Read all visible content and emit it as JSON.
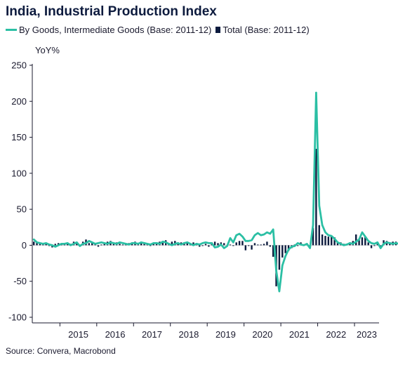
{
  "title": "India, Industrial Production Index",
  "legend": {
    "series1": "By Goods, Intermediate Goods (Base: 2011-12)",
    "series2": "Total (Base: 2011-12)"
  },
  "source": "Source: Convera, Macrobond",
  "colors": {
    "line": "#2bbfa4",
    "bar": "#0d1b3e",
    "axis": "#1a1a2e"
  },
  "chart_data": {
    "type": "bar+line",
    "ylabel": "YoY%",
    "ylim": [
      -100,
      250
    ],
    "yticks": [
      -100,
      -50,
      0,
      50,
      100,
      150,
      200,
      250
    ],
    "xlim": [
      "2014-04",
      "2023-08"
    ],
    "xticks": [
      "2015",
      "2016",
      "2017",
      "2018",
      "2019",
      "2020",
      "2021",
      "2022",
      "2023"
    ],
    "grid": false,
    "legend_position": "top-left",
    "series": [
      {
        "name": "By Goods, Intermediate Goods (Base: 2011-12)",
        "type": "line",
        "start": "2014-04",
        "frequency": "monthly",
        "values": [
          8,
          4,
          3,
          2,
          3,
          1,
          0,
          -2,
          0,
          2,
          2,
          3,
          0,
          2,
          4,
          -1,
          2,
          3,
          6,
          4,
          2,
          3,
          4,
          3,
          2,
          4,
          3,
          2,
          4,
          3,
          2,
          1,
          3,
          3,
          2,
          4,
          3,
          2,
          1,
          3,
          3,
          2,
          5,
          4,
          2,
          0,
          2,
          3,
          1,
          3,
          4,
          2,
          0,
          2,
          1,
          3,
          4,
          3,
          3,
          -3,
          -2,
          1,
          -4,
          -1,
          10,
          4,
          14,
          16,
          12,
          6,
          6,
          7,
          14,
          17,
          14,
          15,
          18,
          16,
          22,
          -35,
          -64,
          -28,
          -15,
          -6,
          -2,
          -1,
          3,
          1,
          0,
          2,
          -4,
          28,
          212,
          55,
          28,
          18,
          14,
          13,
          9,
          4,
          2,
          0,
          1,
          3,
          2,
          5,
          8,
          18,
          12,
          6,
          3,
          2,
          4,
          -4,
          2,
          4,
          3,
          2,
          3,
          2,
          4,
          3,
          3,
          6,
          4,
          3,
          4,
          4,
          6
        ],
        "color": "#2bbfa4"
      },
      {
        "name": "Total (Base: 2011-12)",
        "type": "bar",
        "start": "2014-04",
        "frequency": "monthly",
        "values": [
          5,
          4,
          3,
          1,
          2,
          -1,
          -3,
          2,
          3,
          2,
          2,
          3,
          2,
          5,
          4,
          -1,
          5,
          8,
          3,
          4,
          3,
          -2,
          1,
          2,
          5,
          6,
          3,
          4,
          2,
          1,
          2,
          3,
          4,
          5,
          3,
          4,
          4,
          2,
          -1,
          3,
          4,
          5,
          5,
          7,
          3,
          5,
          6,
          4,
          4,
          4,
          5,
          3,
          4,
          3,
          -2,
          -1,
          2,
          -2,
          4,
          5,
          3,
          4,
          3,
          -1,
          1,
          -1,
          4,
          6,
          6,
          -7,
          -1,
          -6,
          3,
          1,
          1,
          2,
          5,
          -2,
          -16,
          -57,
          -34,
          -17,
          -11,
          -8,
          -4,
          1,
          -1,
          4,
          1,
          2,
          -3,
          24,
          134,
          28,
          15,
          13,
          12,
          12,
          11,
          4,
          4,
          2,
          2,
          4,
          6,
          15,
          7,
          11,
          12,
          4,
          -4,
          -1,
          2,
          -4,
          7,
          6,
          4,
          5,
          5,
          7,
          6,
          5,
          4,
          6,
          6,
          4,
          6,
          8,
          10
        ],
        "color": "#0d1b3e"
      }
    ]
  }
}
